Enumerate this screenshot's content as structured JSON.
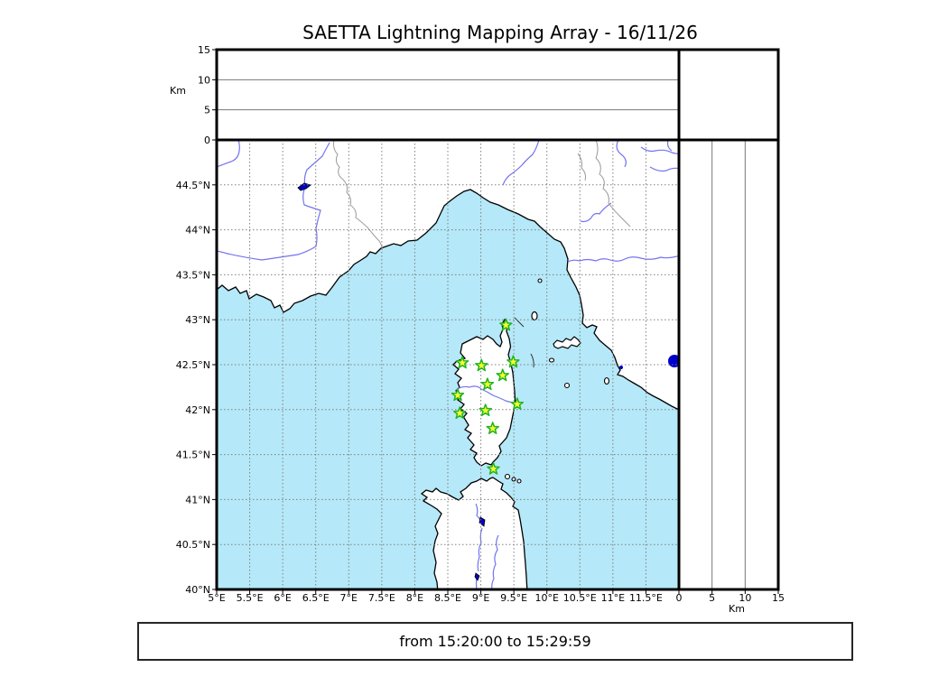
{
  "window": {
    "title": "SAETTA Lightning Mapping Array - 16/11/26"
  },
  "footer": {
    "text": "from 15:20:00 to 15:29:59"
  },
  "colors": {
    "background": "#ffffff",
    "sea": "#b5e8f8",
    "land": "#ffffff",
    "coastline": "#000000",
    "river": "#7373f0",
    "admin_border": "#9a9a9a",
    "lake": "#0000cc",
    "map_grid": "#808080",
    "panel_grid": "#777777",
    "panel_border": "#000000",
    "station_fill": "#f8ff2e",
    "station_stroke": "#21b421"
  },
  "chart_data": {
    "type": "scatter",
    "title": "SAETTA Lightning Mapping Array - 16/11/26",
    "time_window": {
      "from": "15:20:00",
      "to": "15:29:59",
      "caption": "from 15:20:00 to 15:29:59"
    },
    "map_panel": {
      "lon_range": [
        5,
        12
      ],
      "lat_range": [
        40,
        45
      ],
      "lon_tick_values": [
        5,
        5.5,
        6,
        6.5,
        7,
        7.5,
        8,
        8.5,
        9,
        9.5,
        10,
        10.5,
        11,
        11.5
      ],
      "lon_tick_labels": [
        "5°E",
        "5.5°E",
        "6°E",
        "6.5°E",
        "7°E",
        "7.5°E",
        "8°E",
        "8.5°E",
        "9°E",
        "9.5°E",
        "10°E",
        "10.5°E",
        "11°E",
        "11.5°E"
      ],
      "lat_tick_values": [
        40,
        40.5,
        41,
        41.5,
        42,
        42.5,
        43,
        43.5,
        44,
        44.5
      ],
      "lat_tick_labels": [
        "40°N",
        "40.5°N",
        "41°N",
        "41.5°N",
        "42°N",
        "42.5°N",
        "43°N",
        "43.5°N",
        "44°N",
        "44.5°N"
      ],
      "grid_step_deg": 0.5,
      "grid_style": "dotted"
    },
    "altitude_panel_top": {
      "axis": "y",
      "range_km": [
        0,
        15
      ],
      "tick_values": [
        0,
        5,
        10,
        15
      ],
      "tick_labels": [
        "0",
        "5",
        "10",
        "15"
      ],
      "unit_label": "Km",
      "gridline_values": [
        5,
        10
      ],
      "points": []
    },
    "altitude_panel_right": {
      "axis": "x",
      "range_km": [
        0,
        15
      ],
      "tick_values": [
        0,
        5,
        10,
        15
      ],
      "tick_labels": [
        "0",
        "5",
        "10",
        "15"
      ],
      "unit_label": "Km",
      "gridline_values": [
        5,
        10
      ],
      "points": []
    },
    "corner_panel": {
      "points": []
    },
    "stations": [
      {
        "lon": 9.38,
        "lat": 42.94
      },
      {
        "lon": 8.72,
        "lat": 42.52
      },
      {
        "lon": 9.01,
        "lat": 42.49
      },
      {
        "lon": 9.49,
        "lat": 42.53
      },
      {
        "lon": 9.33,
        "lat": 42.38
      },
      {
        "lon": 9.1,
        "lat": 42.28
      },
      {
        "lon": 8.65,
        "lat": 42.16
      },
      {
        "lon": 9.55,
        "lat": 42.06
      },
      {
        "lon": 9.07,
        "lat": 41.99
      },
      {
        "lon": 8.68,
        "lat": 41.96
      },
      {
        "lon": 9.18,
        "lat": 41.79
      },
      {
        "lon": 9.19,
        "lat": 41.34
      }
    ],
    "detections": []
  }
}
